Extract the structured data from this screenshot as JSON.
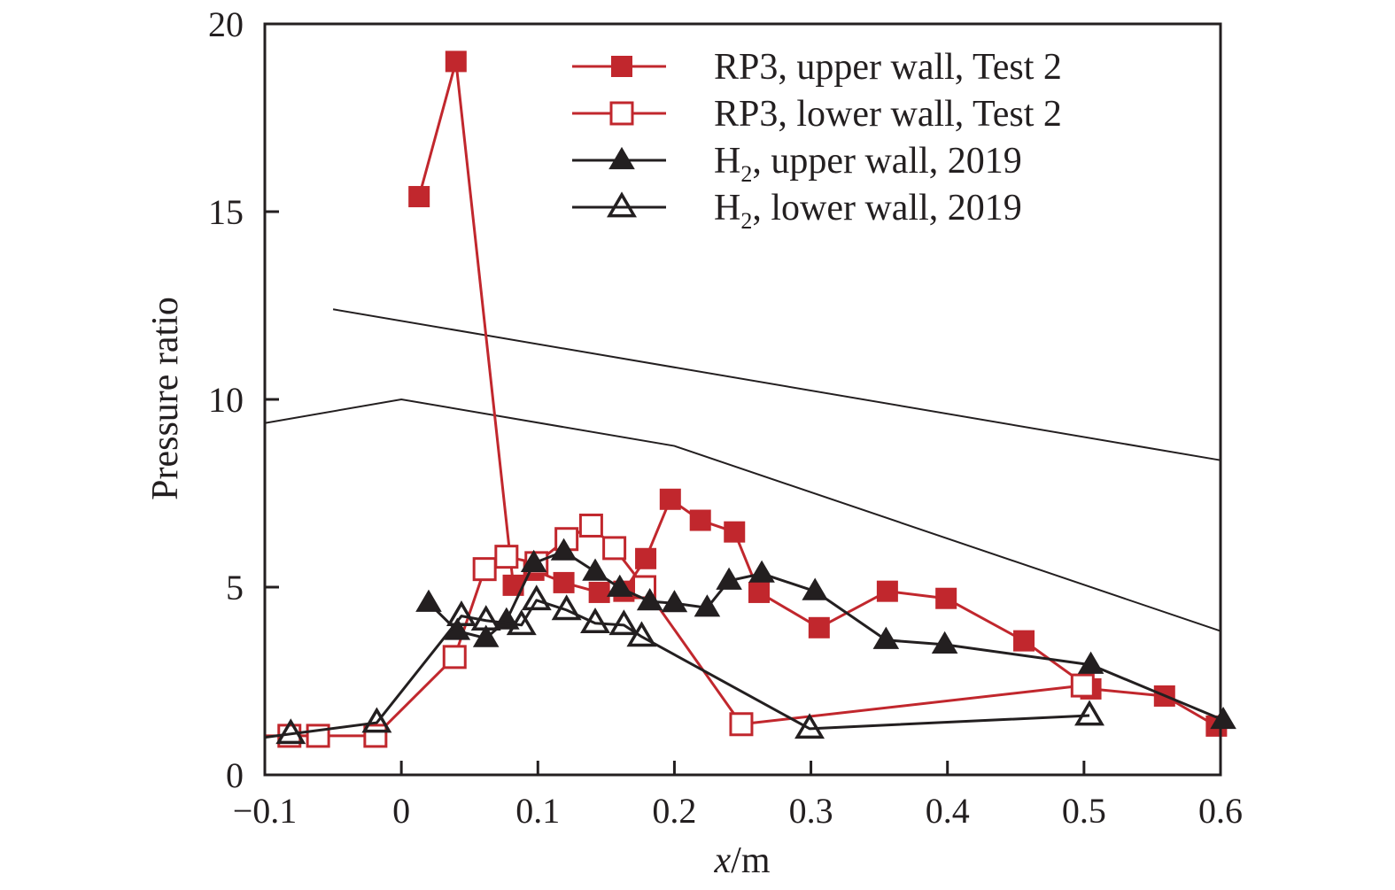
{
  "chart_data": {
    "type": "line",
    "title": "",
    "xlabel_italic": "x",
    "xlabel_unit": "/m",
    "ylabel": "Pressure ratio",
    "xlim": [
      -0.1,
      0.6
    ],
    "ylim": [
      0,
      20
    ],
    "xticks": [
      -0.1,
      0,
      0.1,
      0.2,
      0.3,
      0.4,
      0.5,
      0.6
    ],
    "xtick_labels": [
      "−0.1",
      "0",
      "0.1",
      "0.2",
      "0.3",
      "0.4",
      "0.5",
      "0.6"
    ],
    "yticks": [
      0,
      5,
      10,
      15,
      20
    ],
    "ytick_labels": [
      "0",
      "5",
      "10",
      "15",
      "20"
    ],
    "grid": false,
    "legend_position": "top-right",
    "colors": {
      "red": "#c1272d",
      "black": "#231f20"
    },
    "series": [
      {
        "name": "RP3, upper wall, Test 2",
        "legend_parts": [
          "RP3, upper wall, Test 2"
        ],
        "color": "red",
        "marker": "square-filled",
        "x": [
          0.013,
          0.04,
          0.082,
          0.097,
          0.119,
          0.145,
          0.163,
          0.179,
          0.197,
          0.219,
          0.244,
          0.262,
          0.306,
          0.356,
          0.399,
          0.456,
          0.505,
          0.559,
          0.597
        ],
        "y": [
          15.4,
          19.0,
          5.05,
          5.45,
          5.12,
          4.86,
          4.89,
          5.76,
          7.34,
          6.78,
          6.47,
          4.86,
          3.92,
          4.89,
          4.7,
          3.57,
          2.29,
          2.1,
          1.3
        ]
      },
      {
        "name": "RP3, lower wall, Test 2",
        "legend_parts": [
          "RP3, lower wall, Test 2"
        ],
        "color": "red",
        "marker": "square-open",
        "line_start": [
          -0.1,
          1.04
        ],
        "x": [
          -0.082,
          -0.061,
          -0.019,
          0.039,
          0.061,
          0.077,
          0.099,
          0.121,
          0.139,
          0.156,
          0.178,
          0.249,
          0.499
        ],
        "y": [
          1.04,
          1.04,
          1.04,
          3.14,
          5.48,
          5.81,
          5.64,
          6.28,
          6.64,
          6.04,
          5.0,
          1.35,
          2.38
        ]
      },
      {
        "name": "H2, upper wall, 2019",
        "legend_parts": [
          "H",
          "2",
          ", upper wall, 2019"
        ],
        "color": "black",
        "marker": "triangle-filled",
        "x": [
          0.02,
          0.041,
          0.062,
          0.077,
          0.097,
          0.119,
          0.142,
          0.16,
          0.182,
          0.2,
          0.224,
          0.24,
          0.264,
          0.303,
          0.355,
          0.398,
          0.505,
          0.602
        ],
        "y": [
          4.58,
          3.83,
          3.64,
          4.11,
          5.64,
          5.95,
          5.41,
          4.98,
          4.62,
          4.57,
          4.45,
          5.17,
          5.36,
          4.89,
          3.59,
          3.47,
          2.93,
          1.46
        ]
      },
      {
        "name": "H2, lower wall, 2019",
        "legend_parts": [
          "H",
          "2",
          ", lower wall, 2019"
        ],
        "color": "black",
        "marker": "triangle-open",
        "line_start": [
          -0.1,
          1.0
        ],
        "x": [
          -0.081,
          -0.018,
          0.044,
          0.062,
          0.088,
          0.099,
          0.121,
          0.142,
          0.163,
          0.176,
          0.299,
          0.504
        ],
        "y": [
          1.09,
          1.39,
          4.23,
          4.11,
          3.99,
          4.65,
          4.39,
          4.04,
          3.99,
          3.68,
          1.23,
          1.58
        ]
      }
    ],
    "reference_lines": [
      {
        "name": "upper-limit-line",
        "x": [
          -0.05,
          0.6
        ],
        "y": [
          12.4,
          8.38
        ]
      },
      {
        "name": "lower-limit-line",
        "x": [
          -0.1,
          0.0,
          0.2,
          0.6
        ],
        "y": [
          9.37,
          10.0,
          8.76,
          3.83
        ]
      }
    ]
  }
}
